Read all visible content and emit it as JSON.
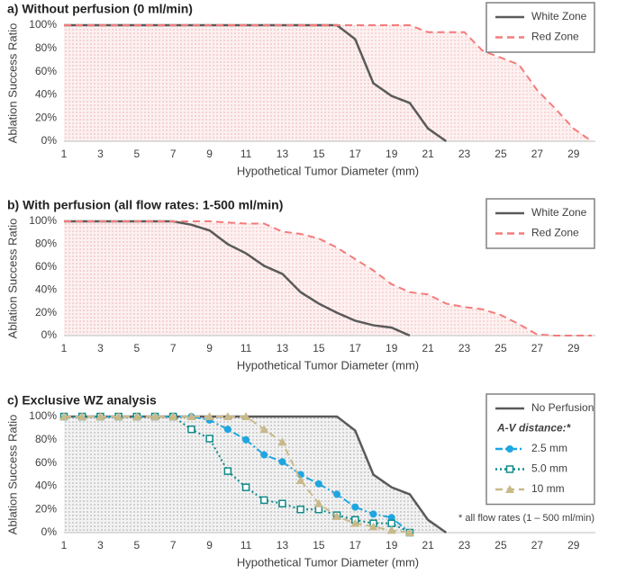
{
  "chart_data": [
    {
      "type": "line",
      "title": "a) Without perfusion (0 ml/min)",
      "xlabel": "Hypothetical Tumor Diameter (mm)",
      "ylabel": "Ablation Success Ratio",
      "x": [
        1,
        2,
        3,
        4,
        5,
        6,
        7,
        8,
        9,
        10,
        11,
        12,
        13,
        14,
        15,
        16,
        17,
        18,
        19,
        20,
        21,
        22,
        23,
        24,
        25,
        26,
        27,
        28,
        29,
        30
      ],
      "xlim": [
        1,
        30
      ],
      "xticks": [
        1,
        3,
        5,
        7,
        9,
        11,
        13,
        15,
        17,
        19,
        21,
        23,
        25,
        27,
        29
      ],
      "ylim": [
        0,
        100
      ],
      "yticks": [
        {
          "value": 0,
          "label": "0%"
        },
        {
          "value": 20,
          "label": "20%"
        },
        {
          "value": 40,
          "label": "40%"
        },
        {
          "value": 60,
          "label": "60%"
        },
        {
          "value": 80,
          "label": "80%"
        },
        {
          "value": 100,
          "label": "100%"
        }
      ],
      "legend": "upper right",
      "series": [
        {
          "name": "White Zone",
          "color": "#5a5a5a",
          "line_style": "solid",
          "fill": true,
          "values": [
            100,
            100,
            100,
            100,
            100,
            100,
            100,
            100,
            100,
            100,
            100,
            100,
            100,
            100,
            100,
            100,
            88,
            50,
            39,
            33,
            11,
            0,
            null,
            null,
            null,
            null,
            null,
            null,
            null,
            null
          ]
        },
        {
          "name": "Red Zone",
          "color": "#f47c7c",
          "line_style": "dashed",
          "fill": true,
          "values": [
            100,
            100,
            100,
            100,
            100,
            100,
            100,
            100,
            100,
            100,
            100,
            100,
            100,
            100,
            100,
            100,
            100,
            100,
            100,
            100,
            94,
            94,
            94,
            78,
            72,
            66,
            44,
            28,
            11,
            0
          ]
        }
      ]
    },
    {
      "type": "line",
      "title": "b) With perfusion (all flow rates: 1-500 ml/min)",
      "xlabel": "Hypothetical Tumor Diameter (mm)",
      "ylabel": "Ablation Success Ratio",
      "x": [
        1,
        2,
        3,
        4,
        5,
        6,
        7,
        8,
        9,
        10,
        11,
        12,
        13,
        14,
        15,
        16,
        17,
        18,
        19,
        20,
        21,
        22,
        23,
        24,
        25,
        26,
        27,
        28,
        29,
        30
      ],
      "xlim": [
        1,
        30
      ],
      "xticks": [
        1,
        3,
        5,
        7,
        9,
        11,
        13,
        15,
        17,
        19,
        21,
        23,
        25,
        27,
        29
      ],
      "ylim": [
        0,
        100
      ],
      "yticks": [
        {
          "value": 0,
          "label": "0%"
        },
        {
          "value": 20,
          "label": "20%"
        },
        {
          "value": 40,
          "label": "40%"
        },
        {
          "value": 60,
          "label": "60%"
        },
        {
          "value": 80,
          "label": "80%"
        },
        {
          "value": 100,
          "label": "100%"
        }
      ],
      "legend": "upper right",
      "series": [
        {
          "name": "White Zone",
          "color": "#5a5a5a",
          "line_style": "solid",
          "fill": true,
          "values": [
            100,
            100,
            100,
            100,
            100,
            100,
            100,
            97,
            92,
            80,
            72,
            61,
            54,
            38,
            28,
            20,
            13,
            9,
            7,
            0,
            null,
            null,
            null,
            null,
            null,
            null,
            null,
            null,
            null,
            null
          ]
        },
        {
          "name": "Red Zone",
          "color": "#f47c7c",
          "line_style": "dashed",
          "fill": true,
          "values": [
            100,
            100,
            100,
            100,
            100,
            100,
            100,
            100,
            100,
            99,
            98,
            98,
            91,
            89,
            85,
            77,
            67,
            57,
            45,
            38,
            36,
            28,
            25,
            23,
            18,
            10,
            1,
            0,
            0,
            0
          ]
        }
      ]
    },
    {
      "type": "line",
      "title": "c) Exclusive WZ analysis",
      "xlabel": "Hypothetical Tumor Diameter (mm)",
      "ylabel": "Ablation Success Ratio",
      "annotation": "* all flow rates (1 – 500 ml/min)",
      "legend_heading": "A-V distance:*",
      "x": [
        1,
        2,
        3,
        4,
        5,
        6,
        7,
        8,
        9,
        10,
        11,
        12,
        13,
        14,
        15,
        16,
        17,
        18,
        19,
        20,
        21,
        22,
        23,
        24,
        25,
        26,
        27,
        28,
        29,
        30
      ],
      "xlim": [
        1,
        30
      ],
      "xticks": [
        1,
        3,
        5,
        7,
        9,
        11,
        13,
        15,
        17,
        19,
        21,
        23,
        25,
        27,
        29
      ],
      "ylim": [
        0,
        100
      ],
      "yticks": [
        {
          "value": 0,
          "label": "0%"
        },
        {
          "value": 20,
          "label": "20%"
        },
        {
          "value": 40,
          "label": "40%"
        },
        {
          "value": 60,
          "label": "60%"
        },
        {
          "value": 80,
          "label": "80%"
        },
        {
          "value": 100,
          "label": "100%"
        }
      ],
      "legend": "upper right",
      "series": [
        {
          "name": "No Perfusion",
          "color": "#5a5a5a",
          "line_style": "solid",
          "fill": true,
          "values": [
            100,
            100,
            100,
            100,
            100,
            100,
            100,
            100,
            100,
            100,
            100,
            100,
            100,
            100,
            100,
            100,
            88,
            50,
            39,
            33,
            11,
            0,
            null,
            null,
            null,
            null,
            null,
            null,
            null,
            null
          ]
        },
        {
          "name": "2.5 mm",
          "color": "#1fa6e0",
          "line_style": "dashdot",
          "marker": "circle",
          "values": [
            100,
            100,
            100,
            100,
            100,
            100,
            100,
            100,
            97,
            89,
            80,
            67,
            61,
            50,
            42,
            33,
            22,
            16,
            13,
            0,
            null,
            null,
            null,
            null,
            null,
            null,
            null,
            null,
            null,
            null
          ]
        },
        {
          "name": "5.0 mm",
          "color": "#108a8a",
          "line_style": "dotted",
          "marker": "square",
          "values": [
            100,
            100,
            100,
            100,
            100,
            100,
            100,
            89,
            81,
            53,
            39,
            28,
            25,
            20,
            20,
            15,
            11,
            8,
            8,
            0,
            null,
            null,
            null,
            null,
            null,
            null,
            null,
            null,
            null,
            null
          ]
        },
        {
          "name": "10 mm",
          "color": "#c9b98a",
          "line_style": "dashed",
          "marker": "triangle",
          "values": [
            100,
            100,
            100,
            100,
            100,
            100,
            100,
            100,
            100,
            100,
            100,
            89,
            78,
            45,
            25,
            14,
            8,
            5,
            2,
            0,
            null,
            null,
            null,
            null,
            null,
            null,
            null,
            null,
            null,
            null
          ]
        }
      ]
    }
  ]
}
